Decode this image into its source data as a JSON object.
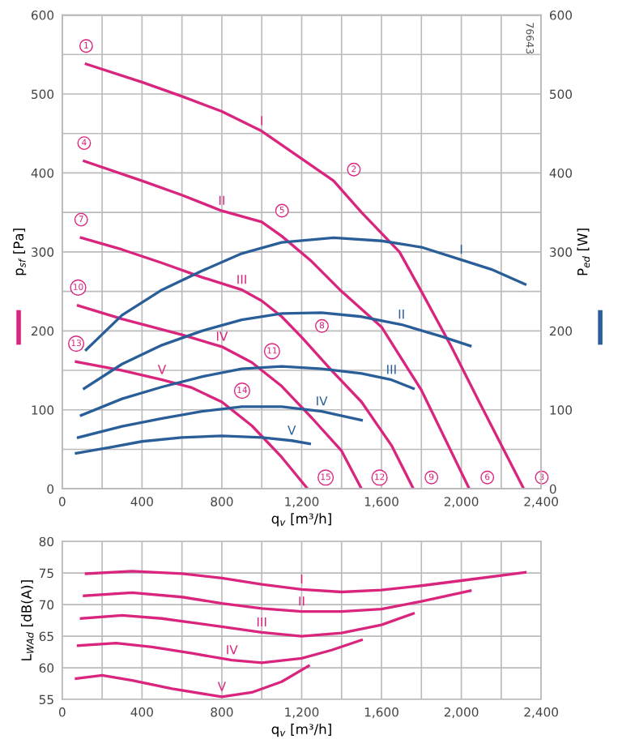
{
  "chart_data": [
    {
      "type": "line",
      "xlabel": "q$_{v}$ [m³/h]",
      "ylabel": "p$_{sf}$ [Pa]",
      "y2label": "P$_{ed}$ [W]",
      "grid": true,
      "legend": false,
      "marker": "none",
      "line_style": "solid",
      "xlim": [
        0,
        2400
      ],
      "xticks": [
        0,
        {
          "value": 200,
          "label": null
        },
        400,
        {
          "value": 600,
          "label": null
        },
        800,
        {
          "value": 1000,
          "label": null
        },
        {
          "value": 1200,
          "label": "1,200"
        },
        {
          "value": 1400,
          "label": null
        },
        {
          "value": 1600,
          "label": "1,600"
        },
        {
          "value": 1800,
          "label": null
        },
        {
          "value": 2000,
          "label": "2,000"
        },
        {
          "value": 2200,
          "label": null
        },
        {
          "value": 2400,
          "label": "2,400"
        }
      ],
      "ylim": [
        0,
        600
      ],
      "yticks": [
        0,
        {
          "value": 50,
          "label": null
        },
        100,
        {
          "value": 150,
          "label": null
        },
        200,
        {
          "value": 250,
          "label": null
        },
        300,
        {
          "value": 350,
          "label": null
        },
        400,
        {
          "value": 450,
          "label": null
        },
        500,
        {
          "value": 550,
          "label": null
        },
        600
      ],
      "y2lim": [
        0,
        600
      ],
      "y2ticks": [
        0,
        100,
        200,
        300,
        400,
        500,
        600
      ],
      "series": [
        {
          "name": "I",
          "color": "#d9257e",
          "x": [
            120,
            400,
            600,
            800,
            1000,
            1200,
            1360,
            1500,
            1690,
            1800,
            1950,
            2100,
            2313
          ],
          "values": [
            538,
            515,
            497,
            478,
            453,
            418,
            390,
            350,
            300,
            250,
            180,
            105,
            0
          ]
        },
        {
          "name": "II",
          "color": "#d9257e",
          "x": [
            110,
            400,
            600,
            800,
            1000,
            1100,
            1250,
            1400,
            1600,
            1800,
            2040
          ],
          "values": [
            415,
            390,
            372,
            352,
            338,
            320,
            288,
            250,
            205,
            125,
            0
          ]
        },
        {
          "name": "III",
          "color": "#d9257e",
          "x": [
            95,
            300,
            500,
            700,
            900,
            1000,
            1100,
            1200,
            1350,
            1500,
            1650,
            1760
          ],
          "values": [
            318,
            303,
            286,
            268,
            252,
            238,
            218,
            192,
            150,
            110,
            55,
            0
          ]
        },
        {
          "name": "IV",
          "color": "#d9257e",
          "x": [
            80,
            300,
            600,
            800,
            950,
            1100,
            1250,
            1400,
            1500
          ],
          "values": [
            232,
            215,
            195,
            180,
            160,
            130,
            90,
            48,
            0
          ]
        },
        {
          "name": "V",
          "color": "#d9257e",
          "x": [
            70,
            300,
            500,
            650,
            800,
            950,
            1100,
            1230
          ],
          "values": [
            161,
            150,
            138,
            128,
            110,
            80,
            40,
            0
          ]
        },
        {
          "name": "I",
          "color": "#2a5e99",
          "axis": "y2",
          "x": [
            120,
            300,
            500,
            700,
            900,
            1100,
            1360,
            1600,
            1800,
            2000,
            2150,
            2320
          ],
          "values": [
            176,
            220,
            252,
            276,
            298,
            312,
            318,
            314,
            306,
            290,
            278,
            259
          ]
        },
        {
          "name": "II",
          "color": "#2a5e99",
          "axis": "y2",
          "x": [
            110,
            300,
            500,
            700,
            900,
            1100,
            1300,
            1500,
            1700,
            1900,
            2045
          ],
          "values": [
            127,
            158,
            182,
            200,
            214,
            222,
            223,
            218,
            208,
            193,
            181
          ]
        },
        {
          "name": "III",
          "color": "#2a5e99",
          "axis": "y2",
          "x": [
            95,
            300,
            500,
            700,
            900,
            1100,
            1300,
            1500,
            1650,
            1760
          ],
          "values": [
            93,
            114,
            129,
            142,
            152,
            155,
            152,
            146,
            138,
            127
          ]
        },
        {
          "name": "IV",
          "color": "#2a5e99",
          "axis": "y2",
          "x": [
            80,
            300,
            500,
            700,
            900,
            1100,
            1300,
            1500
          ],
          "values": [
            65,
            79,
            89,
            98,
            104,
            104,
            98,
            87
          ]
        },
        {
          "name": "V",
          "color": "#2a5e99",
          "axis": "y2",
          "x": [
            70,
            250,
            400,
            600,
            800,
            1000,
            1150,
            1240
          ],
          "values": [
            45,
            53,
            60,
            65,
            67,
            65,
            61,
            57
          ]
        }
      ],
      "annotations": [
        "76643",
        {
          "text": "1",
          "x": 120,
          "y": 538
        },
        {
          "text": "2",
          "x": 1360,
          "y": 390
        },
        {
          "text": "3",
          "x": 2313,
          "y": 0
        },
        {
          "text": "4",
          "x": 110,
          "y": 415
        },
        {
          "text": "5",
          "x": 1000,
          "y": 338
        },
        {
          "text": "6",
          "x": 2040,
          "y": 0
        },
        {
          "text": "7",
          "x": 95,
          "y": 318
        },
        {
          "text": "8",
          "x": 1200,
          "y": 192
        },
        {
          "text": "9",
          "x": 1760,
          "y": 0
        },
        {
          "text": "10",
          "x": 80,
          "y": 232
        },
        {
          "text": "11",
          "x": 950,
          "y": 160
        },
        {
          "text": "12",
          "x": 1500,
          "y": 0
        },
        {
          "text": "13",
          "x": 70,
          "y": 161
        },
        {
          "text": "14",
          "x": 800,
          "y": 110
        },
        {
          "text": "15",
          "x": 1230,
          "y": 0
        }
      ]
    },
    {
      "type": "line",
      "xlabel": "q$_{v}$ [m³/h]",
      "ylabel": "L$_{WAd}$ [dB(A)]",
      "grid": true,
      "legend": false,
      "marker": "none",
      "line_style": "solid",
      "xlim": [
        0,
        2400
      ],
      "xticks": [
        0,
        {
          "value": 200,
          "label": null
        },
        400,
        {
          "value": 600,
          "label": null
        },
        800,
        {
          "value": 1000,
          "label": null
        },
        {
          "value": 1200,
          "label": "1,200"
        },
        {
          "value": 1400,
          "label": null
        },
        {
          "value": 1600,
          "label": "1,600"
        },
        {
          "value": 1800,
          "label": null
        },
        {
          "value": 2000,
          "label": "2,000"
        },
        {
          "value": 2200,
          "label": null
        },
        {
          "value": 2400,
          "label": "2,400"
        }
      ],
      "ylim": [
        55,
        80
      ],
      "yticks": [
        55,
        60,
        65,
        70,
        75,
        80
      ],
      "series": [
        {
          "name": "I",
          "color": "#d9257e",
          "x": [
            120,
            350,
            600,
            800,
            1000,
            1200,
            1400,
            1600,
            1800,
            2000,
            2320
          ],
          "values": [
            74.9,
            75.3,
            74.9,
            74.2,
            73.2,
            72.4,
            72.0,
            72.3,
            73.0,
            73.8,
            75.1
          ]
        },
        {
          "name": "II",
          "color": "#d9257e",
          "x": [
            110,
            350,
            600,
            800,
            1000,
            1200,
            1400,
            1600,
            1800,
            2045
          ],
          "values": [
            71.4,
            71.9,
            71.2,
            70.2,
            69.4,
            68.9,
            68.9,
            69.3,
            70.5,
            72.2
          ]
        },
        {
          "name": "III",
          "color": "#d9257e",
          "x": [
            95,
            300,
            500,
            800,
            1000,
            1200,
            1400,
            1600,
            1760
          ],
          "values": [
            67.8,
            68.3,
            67.8,
            66.5,
            65.6,
            65.0,
            65.5,
            66.8,
            68.6
          ]
        },
        {
          "name": "IV",
          "color": "#d9257e",
          "x": [
            80,
            270,
            450,
            650,
            850,
            1000,
            1200,
            1350,
            1500
          ],
          "values": [
            63.5,
            63.9,
            63.3,
            62.3,
            61.2,
            60.8,
            61.5,
            62.8,
            64.4
          ]
        },
        {
          "name": "V",
          "color": "#d9257e",
          "x": [
            70,
            200,
            350,
            550,
            800,
            950,
            1100,
            1235
          ],
          "values": [
            58.3,
            58.8,
            58.0,
            56.7,
            55.4,
            56.1,
            57.8,
            60.3
          ]
        }
      ]
    }
  ]
}
